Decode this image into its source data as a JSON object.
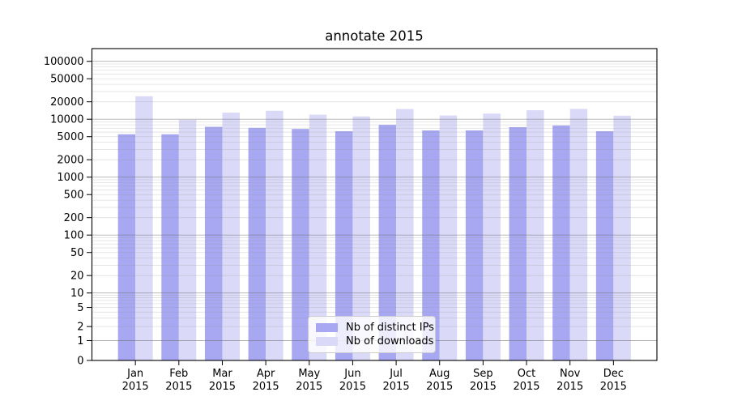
{
  "chart_data": {
    "type": "bar",
    "title": "annotate 2015",
    "categories": [
      "Jan 2015",
      "Feb 2015",
      "Mar 2015",
      "Apr 2015",
      "May 2015",
      "Jun 2015",
      "Jul 2015",
      "Aug 2015",
      "Sep 2015",
      "Oct 2015",
      "Nov 2015",
      "Dec 2015"
    ],
    "series": [
      {
        "name": "Nb of distinct IPs",
        "color": "#a7a7f2",
        "values": [
          5500,
          5500,
          7400,
          7100,
          6800,
          6200,
          8000,
          6400,
          6400,
          7300,
          7800,
          6200
        ]
      },
      {
        "name": "Nb of downloads",
        "color": "#dadaf8",
        "values": [
          25000,
          9800,
          13000,
          14000,
          12000,
          11200,
          15000,
          11600,
          12500,
          14300,
          15100,
          11500
        ]
      }
    ],
    "yscale": "symlog",
    "ytick_labels": [
      "0",
      "1",
      "2",
      "5",
      "10",
      "20",
      "50",
      "100",
      "200",
      "500",
      "1000",
      "2000",
      "5000",
      "10000",
      "20000",
      "50000",
      "100000"
    ],
    "ylim": [
      0,
      166000
    ],
    "xlabel": "",
    "ylabel": "",
    "grid": "horizontal log major+minor",
    "legend_position": "lower center",
    "colors": {
      "frame": "#000000",
      "tick_text": "#000000",
      "major_grid": "#b0b0b0",
      "minor_grid": "#e4e4e4",
      "background": "#ffffff"
    }
  }
}
